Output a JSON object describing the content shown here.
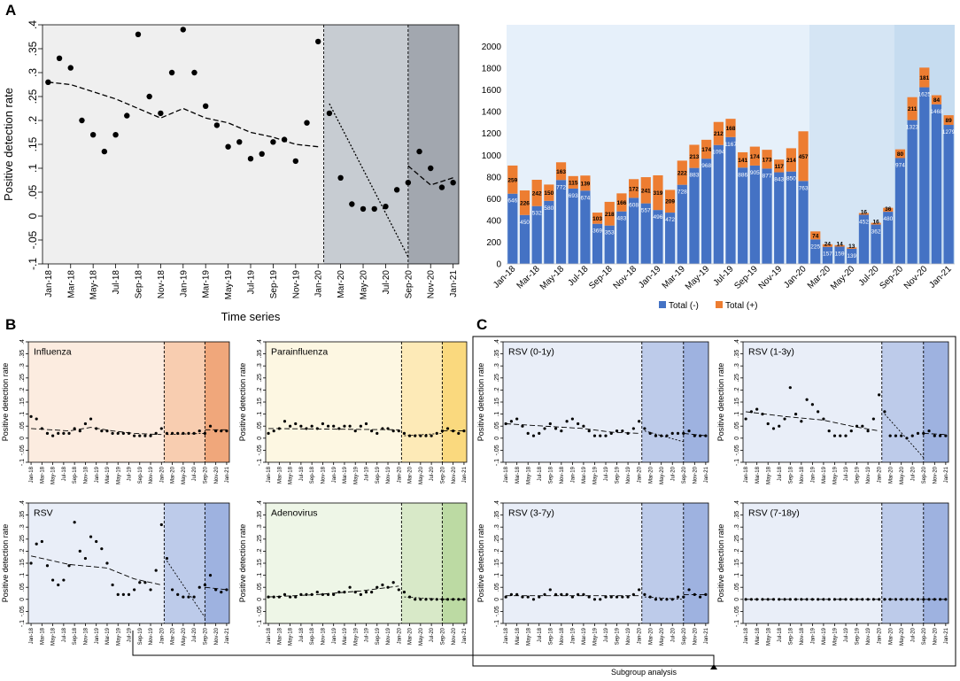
{
  "figure": {
    "panel_a": "A",
    "panel_b": "B",
    "panel_c": "C",
    "subgroup_label": "Subgroup analysis"
  },
  "colors": {
    "period1": "#efefef",
    "period2": "#c7ccd2",
    "period3": "#a2a7af",
    "bar_neg": "#4472c4",
    "bar_pos": "#ed7d31",
    "bar_bg1": "#e6f0fa",
    "bar_bg2": "#d5e5f4",
    "bar_bg3": "#c6dcf0"
  },
  "chart_data": [
    {
      "id": "A_scatter",
      "type": "scatter",
      "title": "",
      "xlabel": "Time series",
      "ylabel": "Positive detection rate",
      "ylim": [
        -0.1,
        0.4
      ],
      "yticks": [
        "-.1",
        "-.05",
        "0",
        ".05",
        ".1",
        ".15",
        ".2",
        ".25",
        ".3",
        ".35",
        ".4"
      ],
      "xticks": [
        "Jan-18",
        "Mar-18",
        "May-18",
        "Jul-18",
        "Sep-18",
        "Nov-18",
        "Jan-19",
        "Mar-19",
        "May-19",
        "Jul-19",
        "Sep-19",
        "Nov-19",
        "Jan-20",
        "Mar-20",
        "May-20",
        "Jul-20",
        "Sep-20",
        "Nov-20",
        "Jan-21"
      ],
      "breaks": [
        25,
        33
      ],
      "points": [
        0.28,
        0.33,
        0.31,
        0.2,
        0.17,
        0.135,
        0.17,
        0.21,
        0.38,
        0.25,
        0.215,
        0.3,
        0.39,
        0.3,
        0.23,
        0.19,
        0.145,
        0.155,
        0.12,
        0.13,
        0.155,
        0.16,
        0.115,
        0.195,
        0.365,
        0.215,
        0.08,
        0.025,
        0.015,
        0.015,
        0.02,
        0.055,
        0.07,
        0.135,
        0.1,
        0.06,
        0.07
      ],
      "trend": [
        [
          [
            1,
            0.28
          ],
          [
            3,
            0.275
          ],
          [
            5,
            0.26
          ],
          [
            7,
            0.245
          ],
          [
            9,
            0.225
          ],
          [
            11,
            0.205
          ],
          [
            13,
            0.225
          ],
          [
            15,
            0.205
          ],
          [
            17,
            0.195
          ],
          [
            19,
            0.175
          ],
          [
            21,
            0.165
          ],
          [
            23,
            0.15
          ],
          [
            25,
            0.145
          ]
        ],
        [
          [
            26,
            0.235
          ],
          [
            33,
            -0.085
          ]
        ],
        [
          [
            33,
            0.105
          ],
          [
            35,
            0.065
          ],
          [
            37,
            0.08
          ]
        ]
      ]
    },
    {
      "id": "A_bars",
      "type": "bar",
      "title": "",
      "xlabel": "",
      "ylabel": "",
      "ylim": [
        0,
        2200
      ],
      "yticks": [
        "0",
        "200",
        "400",
        "600",
        "800",
        "1000",
        "1200",
        "1400",
        "1600",
        "1800",
        "2000"
      ],
      "xticks": [
        "Jan-18",
        "Mar-18",
        "May-18",
        "Jul-18",
        "Sep-18",
        "Nov-18",
        "Jan-19",
        "Mar-19",
        "May-19",
        "Jul-19",
        "Sep-19",
        "Nov-19",
        "Jan-20",
        "Mar-20",
        "May-20",
        "Jul-20",
        "Sep-20",
        "Nov-20",
        "Jan-21"
      ],
      "legend": [
        "Total (-)",
        "Total (+)"
      ],
      "legend_position": "bottom",
      "breaks": [
        25,
        33
      ],
      "negative": [
        646,
        450,
        532,
        580,
        772,
        693,
        674,
        369,
        353,
        483,
        608,
        557,
        496,
        472,
        728,
        883,
        968,
        1094,
        1167,
        886,
        905,
        877,
        843,
        850,
        763,
        225,
        157,
        159,
        139,
        452,
        362,
        480,
        974,
        1323,
        1625,
        1468,
        1279
      ],
      "positive": [
        259,
        226,
        242,
        150,
        163,
        115,
        139,
        103,
        218,
        166,
        172,
        241,
        319,
        209,
        222,
        213,
        174,
        212,
        168,
        141,
        174,
        173,
        117,
        214,
        457,
        74,
        24,
        14,
        13,
        16,
        16,
        36,
        80,
        211,
        181,
        84,
        89
      ],
      "neg_labels": [
        "646",
        "450",
        "532",
        "580",
        "772",
        "693",
        "674",
        "369",
        "353",
        "483",
        "608",
        "557",
        "496",
        "472",
        "728",
        "883",
        "968",
        "1094",
        "1167",
        "886",
        "905",
        "877",
        "843",
        "850",
        "763",
        "225",
        "157",
        "159",
        "139",
        "452",
        "362",
        "480",
        "974",
        "1323",
        "1625",
        "1468",
        "1279"
      ],
      "pos_labels": [
        "259",
        "226",
        "242",
        "150",
        "163",
        "115",
        "139",
        "103",
        "218",
        "166",
        "172",
        "241",
        "319",
        "209",
        "222",
        "213",
        "174",
        "212",
        "168",
        "141",
        "174",
        "173",
        "117",
        "214",
        "457",
        "74",
        "24",
        "14",
        "13",
        "16",
        "16",
        "36",
        "80",
        "211",
        "181",
        "84",
        "89"
      ]
    },
    {
      "id": "B_influenza",
      "type": "scatter",
      "title": "Influenza",
      "ylabel": "Positive detection rate",
      "ylim": [
        -0.1,
        0.4
      ],
      "breaks": [
        25,
        33
      ],
      "points": [
        0.09,
        0.08,
        0.04,
        0.02,
        0.01,
        0.02,
        0.02,
        0.02,
        0.04,
        0.03,
        0.06,
        0.08,
        0.04,
        0.03,
        0.03,
        0.02,
        0.02,
        0.02,
        0.02,
        0.01,
        0.01,
        0.01,
        0.01,
        0.02,
        0.04,
        0.02,
        0.02,
        0.02,
        0.02,
        0.02,
        0.02,
        0.03,
        0.02,
        0.05,
        0.03,
        0.03,
        0.03
      ],
      "trend": [
        [
          [
            1,
            0.04
          ],
          [
            8,
            0.03
          ],
          [
            12,
            0.045
          ],
          [
            16,
            0.03
          ],
          [
            20,
            0.02
          ],
          [
            25,
            0.015
          ]
        ],
        [
          [
            26,
            0.015
          ],
          [
            33,
            0.02
          ]
        ],
        [
          [
            33,
            0.035
          ],
          [
            37,
            0.035
          ]
        ]
      ]
    },
    {
      "id": "B_parainfluenza",
      "type": "scatter",
      "title": "Parainfluenza",
      "ylabel": "Positive detection rate",
      "ylim": [
        -0.1,
        0.4
      ],
      "breaks": [
        25,
        33
      ],
      "points": [
        0.02,
        0.03,
        0.04,
        0.07,
        0.05,
        0.06,
        0.05,
        0.04,
        0.05,
        0.04,
        0.06,
        0.05,
        0.05,
        0.04,
        0.05,
        0.05,
        0.03,
        0.05,
        0.06,
        0.03,
        0.02,
        0.04,
        0.04,
        0.03,
        0.03,
        0.02,
        0.01,
        0.01,
        0.01,
        0.01,
        0.01,
        0.02,
        0.03,
        0.04,
        0.03,
        0.02,
        0.03
      ],
      "trend": [
        [
          [
            1,
            0.04
          ],
          [
            25,
            0.035
          ]
        ],
        [
          [
            26,
            0.01
          ],
          [
            33,
            0.02
          ]
        ],
        [
          [
            33,
            0.03
          ],
          [
            37,
            0.03
          ]
        ]
      ]
    },
    {
      "id": "B_rsv",
      "type": "scatter",
      "title": "RSV",
      "ylabel": "Positive detection rate",
      "ylim": [
        -0.1,
        0.4
      ],
      "breaks": [
        25,
        33
      ],
      "points": [
        0.15,
        0.23,
        0.24,
        0.14,
        0.08,
        0.06,
        0.08,
        0.14,
        0.32,
        0.2,
        0.17,
        0.26,
        0.24,
        0.21,
        0.15,
        0.06,
        0.02,
        0.02,
        0.02,
        0.04,
        0.07,
        0.07,
        0.04,
        0.12,
        0.31,
        0.17,
        0.04,
        0.02,
        0.01,
        0.01,
        0.01,
        0.05,
        0.06,
        0.1,
        0.04,
        0.03,
        0.04
      ],
      "trend": [
        [
          [
            1,
            0.18
          ],
          [
            8,
            0.145
          ],
          [
            15,
            0.13
          ],
          [
            20,
            0.085
          ],
          [
            25,
            0.06
          ]
        ],
        [
          [
            26,
            0.16
          ],
          [
            33,
            -0.075
          ]
        ],
        [
          [
            33,
            0.05
          ],
          [
            37,
            0.04
          ]
        ]
      ]
    },
    {
      "id": "B_adenovirus",
      "type": "scatter",
      "title": "Adenovirus",
      "ylabel": "Positive detection rate",
      "ylim": [
        -0.1,
        0.4
      ],
      "breaks": [
        25,
        33
      ],
      "points": [
        0.01,
        0.01,
        0.01,
        0.02,
        0.01,
        0.01,
        0.02,
        0.02,
        0.02,
        0.03,
        0.02,
        0.02,
        0.02,
        0.03,
        0.03,
        0.05,
        0.03,
        0.02,
        0.03,
        0.03,
        0.05,
        0.06,
        0.05,
        0.07,
        0.04,
        0.03,
        0.01,
        0.0,
        0.0,
        0.0,
        0.0,
        0.0,
        0.0,
        0.0,
        0.0,
        0.0,
        0.0
      ],
      "trend": [
        [
          [
            1,
            0.01
          ],
          [
            10,
            0.02
          ],
          [
            18,
            0.035
          ],
          [
            25,
            0.055
          ]
        ],
        [
          [
            26,
            0.01
          ],
          [
            33,
            0.0
          ]
        ],
        [
          [
            33,
            0.0
          ],
          [
            37,
            0.0
          ]
        ]
      ]
    },
    {
      "id": "C_rsv_0_1",
      "type": "scatter",
      "title": "RSV (0-1y)",
      "ylabel": "Positive detection rate",
      "ylim": [
        -0.1,
        0.4
      ],
      "breaks": [
        25,
        33
      ],
      "points": [
        0.06,
        0.07,
        0.08,
        0.05,
        0.02,
        0.01,
        0.02,
        0.04,
        0.06,
        0.04,
        0.03,
        0.07,
        0.08,
        0.06,
        0.05,
        0.03,
        0.01,
        0.01,
        0.01,
        0.02,
        0.03,
        0.03,
        0.02,
        0.04,
        0.07,
        0.04,
        0.02,
        0.01,
        0.01,
        0.01,
        0.02,
        0.02,
        0.02,
        0.03,
        0.01,
        0.01,
        0.01
      ],
      "trend": [
        [
          [
            1,
            0.06
          ],
          [
            8,
            0.05
          ],
          [
            15,
            0.04
          ],
          [
            20,
            0.025
          ],
          [
            25,
            0.02
          ]
        ],
        [
          [
            26,
            0.03
          ],
          [
            33,
            -0.015
          ]
        ],
        [
          [
            33,
            0.02
          ],
          [
            37,
            0.01
          ]
        ]
      ]
    },
    {
      "id": "C_rsv_1_3",
      "type": "scatter",
      "title": "RSV (1-3y)",
      "ylabel": "Positive detection rate",
      "ylim": [
        -0.1,
        0.4
      ],
      "breaks": [
        25,
        33
      ],
      "points": [
        0.08,
        0.11,
        0.12,
        0.1,
        0.06,
        0.04,
        0.05,
        0.08,
        0.21,
        0.1,
        0.07,
        0.16,
        0.14,
        0.11,
        0.08,
        0.03,
        0.01,
        0.01,
        0.01,
        0.03,
        0.05,
        0.05,
        0.03,
        0.08,
        0.18,
        0.11,
        0.01,
        0.01,
        0.01,
        0.0,
        0.01,
        0.02,
        0.02,
        0.03,
        0.01,
        0.01,
        0.01
      ],
      "trend": [
        [
          [
            1,
            0.11
          ],
          [
            8,
            0.09
          ],
          [
            15,
            0.075
          ],
          [
            20,
            0.05
          ],
          [
            25,
            0.03
          ]
        ],
        [
          [
            26,
            0.1
          ],
          [
            33,
            -0.08
          ]
        ],
        [
          [
            33,
            0.02
          ],
          [
            37,
            0.015
          ]
        ]
      ]
    },
    {
      "id": "C_rsv_3_7",
      "type": "scatter",
      "title": "RSV (3-7y)",
      "ylabel": "Positive detection rate",
      "ylim": [
        -0.1,
        0.4
      ],
      "breaks": [
        25,
        33
      ],
      "points": [
        0.01,
        0.02,
        0.02,
        0.01,
        0.01,
        0.0,
        0.01,
        0.02,
        0.04,
        0.02,
        0.02,
        0.02,
        0.01,
        0.02,
        0.02,
        0.01,
        0.0,
        0.0,
        0.01,
        0.01,
        0.01,
        0.01,
        0.01,
        0.02,
        0.04,
        0.02,
        0.01,
        0.0,
        0.0,
        0.0,
        0.0,
        0.01,
        0.01,
        0.04,
        0.02,
        0.01,
        0.02
      ],
      "trend": [
        [
          [
            1,
            0.015
          ],
          [
            13,
            0.015
          ],
          [
            25,
            0.015
          ]
        ],
        [
          [
            26,
            0.01
          ],
          [
            33,
            0.0
          ]
        ],
        [
          [
            33,
            0.02
          ],
          [
            37,
            0.02
          ]
        ]
      ]
    },
    {
      "id": "C_rsv_7_18",
      "type": "scatter",
      "title": "RSV (7-18y)",
      "ylabel": "Positive detection rate",
      "ylim": [
        -0.1,
        0.4
      ],
      "breaks": [
        25,
        33
      ],
      "points": [
        0.0,
        0.0,
        0.0,
        0.0,
        0.0,
        0.0,
        0.0,
        0.0,
        0.0,
        0.0,
        0.0,
        0.0,
        0.0,
        0.0,
        0.0,
        0.0,
        0.0,
        0.0,
        0.0,
        0.0,
        0.0,
        0.0,
        0.0,
        0.0,
        0.0,
        0.0,
        0.0,
        0.0,
        0.0,
        0.0,
        0.0,
        0.0,
        0.0,
        0.0,
        0.0,
        0.0,
        0.0
      ],
      "trend": [
        [
          [
            1,
            0.0
          ],
          [
            25,
            0.0
          ]
        ],
        [
          [
            26,
            0.0
          ],
          [
            33,
            0.0
          ]
        ],
        [
          [
            33,
            0.0
          ],
          [
            37,
            0.0
          ]
        ]
      ]
    }
  ],
  "small_panel_colors": {
    "B_influenza": [
      "#fcece0",
      "#f8cdb0",
      "#f0a77b"
    ],
    "B_parainfluenza": [
      "#fdf7e2",
      "#fdeab7",
      "#fad97e"
    ],
    "B_rsv": [
      "#e9eef8",
      "#bdcbea",
      "#9eb2e0"
    ],
    "B_adenovirus": [
      "#eef6e7",
      "#d8e9c8",
      "#bcdaa3"
    ],
    "C_rsv_0_1": [
      "#e9eef8",
      "#bdcbea",
      "#9eb2e0"
    ],
    "C_rsv_1_3": [
      "#e9eef8",
      "#bdcbea",
      "#9eb2e0"
    ],
    "C_rsv_3_7": [
      "#e9eef8",
      "#bdcbea",
      "#9eb2e0"
    ],
    "C_rsv_7_18": [
      "#e9eef8",
      "#bdcbea",
      "#9eb2e0"
    ]
  }
}
